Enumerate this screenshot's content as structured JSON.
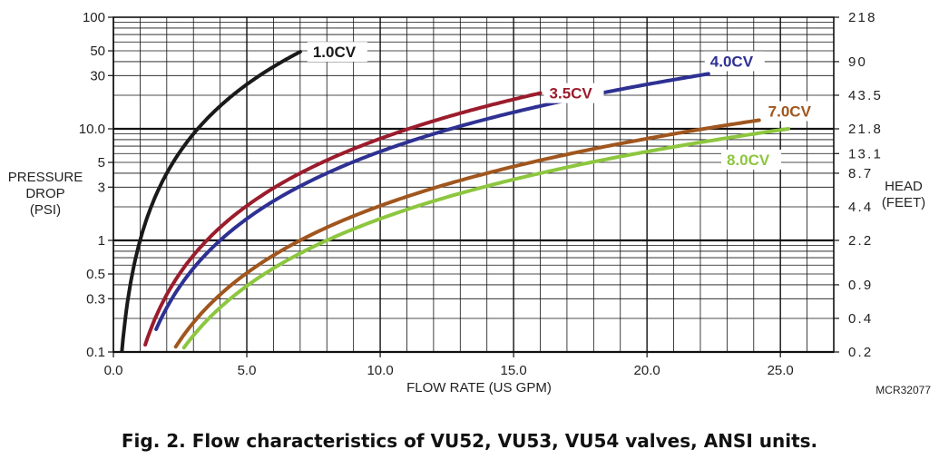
{
  "chart_data": {
    "type": "line",
    "title": "",
    "xlabel": "FLOW RATE (US GPM)",
    "ylabel": [
      "PRESSURE",
      "DROP",
      "(PSI)"
    ],
    "y2label": [
      "HEAD",
      "(FEET)"
    ],
    "xlim": [
      0,
      27
    ],
    "ylim": [
      0.1,
      100
    ],
    "yscale": "log",
    "x_ticks": [
      {
        "value": 0,
        "label": "0.0"
      },
      {
        "value": 5,
        "label": "5.0"
      },
      {
        "value": 10,
        "label": "10.0"
      },
      {
        "value": 15,
        "label": "15.0"
      },
      {
        "value": 20,
        "label": "20.0"
      },
      {
        "value": 25,
        "label": "25.0"
      }
    ],
    "y_ticks": [
      {
        "value": 0.1,
        "label": "0.1"
      },
      {
        "value": 0.3,
        "label": "0.3"
      },
      {
        "value": 0.5,
        "label": "0.5"
      },
      {
        "value": 1,
        "label": "1"
      },
      {
        "value": 3,
        "label": "3"
      },
      {
        "value": 5,
        "label": "5"
      },
      {
        "value": 10,
        "label": "10.0"
      },
      {
        "value": 30,
        "label": "30"
      },
      {
        "value": 50,
        "label": "50"
      },
      {
        "value": 100,
        "label": "100"
      }
    ],
    "y2_ticks": [
      {
        "value": 0.1,
        "label": "0.2"
      },
      {
        "value": 0.2,
        "label": "0.4"
      },
      {
        "value": 0.4,
        "label": "0.9"
      },
      {
        "value": 1,
        "label": "2.2"
      },
      {
        "value": 2,
        "label": "4.4"
      },
      {
        "value": 4,
        "label": "8.7"
      },
      {
        "value": 6,
        "label": "13.1"
      },
      {
        "value": 10,
        "label": "21.8"
      },
      {
        "value": 20,
        "label": "43.5"
      },
      {
        "value": 40,
        "label": "90"
      },
      {
        "value": 100,
        "label": "218"
      }
    ],
    "series": [
      {
        "name": "1.0CV",
        "cv": 1.0,
        "color": "#1a1a1a",
        "x_range": [
          0.32,
          7.0
        ],
        "label_bg": "#ffffff"
      },
      {
        "name": "3.5CV",
        "cv": 3.5,
        "color": "#9b1c2c",
        "x_range": [
          1.1,
          16.0
        ],
        "label_bg": "#ffffff"
      },
      {
        "name": "4.0CV",
        "cv": 4.0,
        "color": "#2e3192",
        "x_range": [
          1.6,
          22.3
        ],
        "label_bg": "#ffffff"
      },
      {
        "name": "7.0CV",
        "cv": 7.0,
        "color": "#a0561e",
        "x_range": [
          2.2,
          24.2
        ],
        "label_bg": "#ffffff"
      },
      {
        "name": "8.0CV",
        "cv": 8.0,
        "color": "#8dc63f",
        "x_range": [
          2.5,
          25.3
        ],
        "label_bg": "#ffffff"
      }
    ],
    "source_code": "MCR32077"
  },
  "caption": "Fig. 2. Flow characteristics of VU52, VU53, VU54 valves, ANSI units."
}
